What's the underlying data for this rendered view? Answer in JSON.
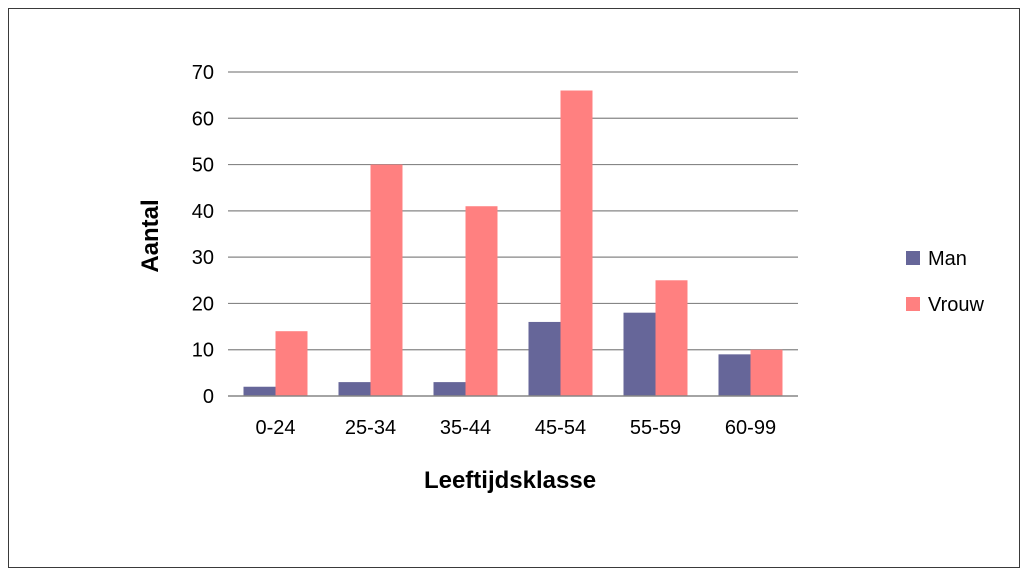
{
  "chart_data": {
    "type": "bar",
    "categories": [
      "0-24",
      "25-34",
      "35-44",
      "45-54",
      "55-59",
      "60-99"
    ],
    "series": [
      {
        "name": "Man",
        "values": [
          2,
          3,
          3,
          16,
          18,
          9
        ],
        "color": "#666699"
      },
      {
        "name": "Vrouw",
        "values": [
          14,
          50,
          41,
          66,
          25,
          10
        ],
        "color": "#ff8080"
      }
    ],
    "title": "",
    "xlabel": "Leeftijdsklasse",
    "ylabel": "Aantal",
    "ylim": [
      0,
      70
    ],
    "yticks": [
      0,
      10,
      20,
      30,
      40,
      50,
      60,
      70
    ],
    "grid": true,
    "legend_position": "right"
  }
}
